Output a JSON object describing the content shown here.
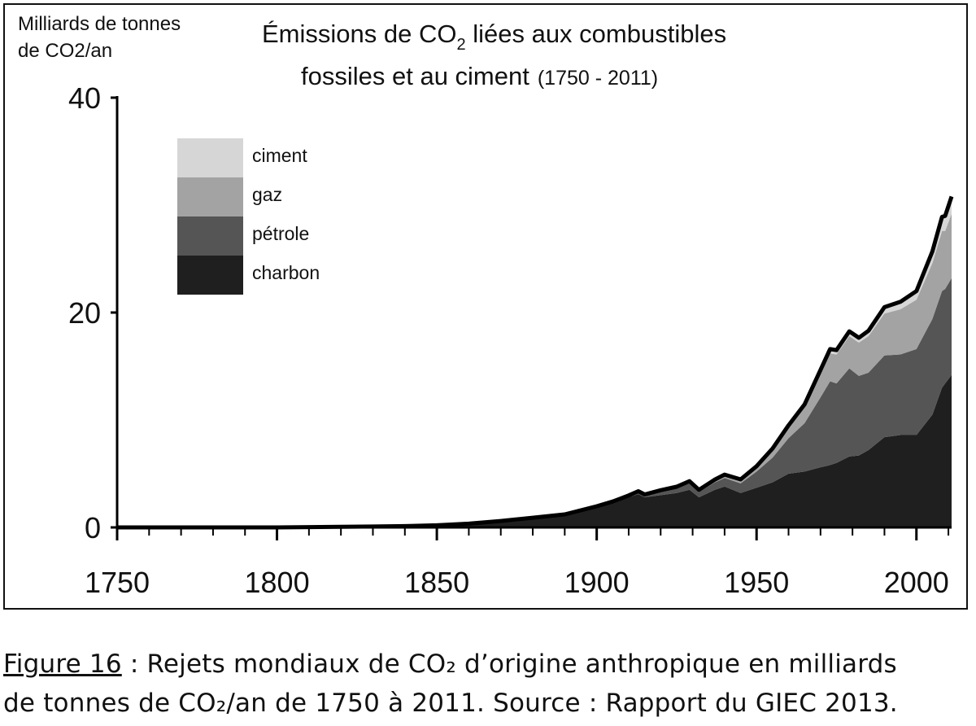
{
  "chart_data": {
    "type": "area",
    "stacked": true,
    "title_parts": [
      "Émissions de CO",
      "2",
      " liées aux combustibles",
      "fossiles et au ciment",
      "(1750 - 2011)"
    ],
    "ylabel_lines": [
      "Milliards de tonnes",
      "de CO2/an"
    ],
    "xlim": [
      1750,
      2011
    ],
    "ylim": [
      0,
      40
    ],
    "x_ticks": [
      1750,
      1800,
      1850,
      1900,
      1950,
      2000
    ],
    "x_tick_labels": [
      "1750",
      "1800",
      "1850",
      "1900",
      "1950",
      "2000"
    ],
    "y_ticks": [
      0,
      20,
      40
    ],
    "y_tick_labels": [
      "0",
      "20",
      "40"
    ],
    "legend": {
      "placement": "top-left",
      "entries": [
        {
          "label": "ciment",
          "color": "#d6d6d6"
        },
        {
          "label": "gaz",
          "color": "#a3a3a3"
        },
        {
          "label": "pétrole",
          "color": "#555555"
        },
        {
          "label": "charbon",
          "color": "#1f1f1f"
        }
      ]
    },
    "x": [
      1750,
      1800,
      1820,
      1830,
      1840,
      1850,
      1860,
      1870,
      1880,
      1890,
      1900,
      1905,
      1910,
      1913,
      1915,
      1920,
      1925,
      1929,
      1932,
      1937,
      1940,
      1945,
      1950,
      1955,
      1960,
      1965,
      1970,
      1973,
      1975,
      1979,
      1982,
      1985,
      1990,
      1995,
      2000,
      2005,
      2008,
      2009,
      2011
    ],
    "series": [
      {
        "name": "charbon",
        "values": [
          0,
          0,
          0.05,
          0.08,
          0.12,
          0.2,
          0.35,
          0.6,
          0.9,
          1.2,
          1.9,
          2.3,
          2.8,
          3.1,
          2.8,
          3.0,
          3.2,
          3.5,
          2.8,
          3.5,
          3.8,
          3.2,
          3.7,
          4.2,
          5.0,
          5.2,
          5.6,
          5.8,
          6.0,
          6.6,
          6.7,
          7.2,
          8.4,
          8.6,
          8.6,
          10.5,
          13.0,
          13.4,
          14.2
        ]
      },
      {
        "name": "pétrole",
        "values": [
          0,
          0,
          0,
          0,
          0,
          0,
          0,
          0,
          0,
          0.01,
          0.05,
          0.08,
          0.12,
          0.2,
          0.2,
          0.35,
          0.45,
          0.6,
          0.5,
          0.7,
          0.8,
          0.9,
          1.5,
          2.3,
          3.3,
          4.5,
          6.5,
          7.8,
          7.4,
          8.2,
          7.4,
          7.2,
          7.6,
          7.5,
          8.0,
          8.9,
          9.0,
          8.8,
          9.0
        ]
      },
      {
        "name": "gaz",
        "values": [
          0,
          0,
          0,
          0,
          0,
          0,
          0,
          0,
          0,
          0,
          0.01,
          0.02,
          0.04,
          0.05,
          0.05,
          0.08,
          0.1,
          0.15,
          0.15,
          0.2,
          0.25,
          0.3,
          0.4,
          0.7,
          1.0,
          1.5,
          2.2,
          2.6,
          2.7,
          3.0,
          3.1,
          3.4,
          3.9,
          4.2,
          4.6,
          5.2,
          5.6,
          5.4,
          6.0
        ]
      },
      {
        "name": "ciment",
        "values": [
          0,
          0,
          0,
          0,
          0,
          0,
          0,
          0,
          0,
          0,
          0.01,
          0.01,
          0.02,
          0.02,
          0.02,
          0.03,
          0.04,
          0.05,
          0.05,
          0.06,
          0.07,
          0.07,
          0.1,
          0.15,
          0.2,
          0.25,
          0.35,
          0.4,
          0.4,
          0.45,
          0.45,
          0.5,
          0.6,
          0.7,
          0.8,
          1.1,
          1.3,
          1.4,
          1.6
        ]
      }
    ]
  },
  "caption": {
    "figure_label": "Figure 16",
    "line1_rest": " : Rejets mondiaux de CO₂ d’origine anthropique en milliards",
    "line2": "de tonnes de CO₂/an de 1750 à 2011. Source : Rapport du GIEC 2013."
  }
}
